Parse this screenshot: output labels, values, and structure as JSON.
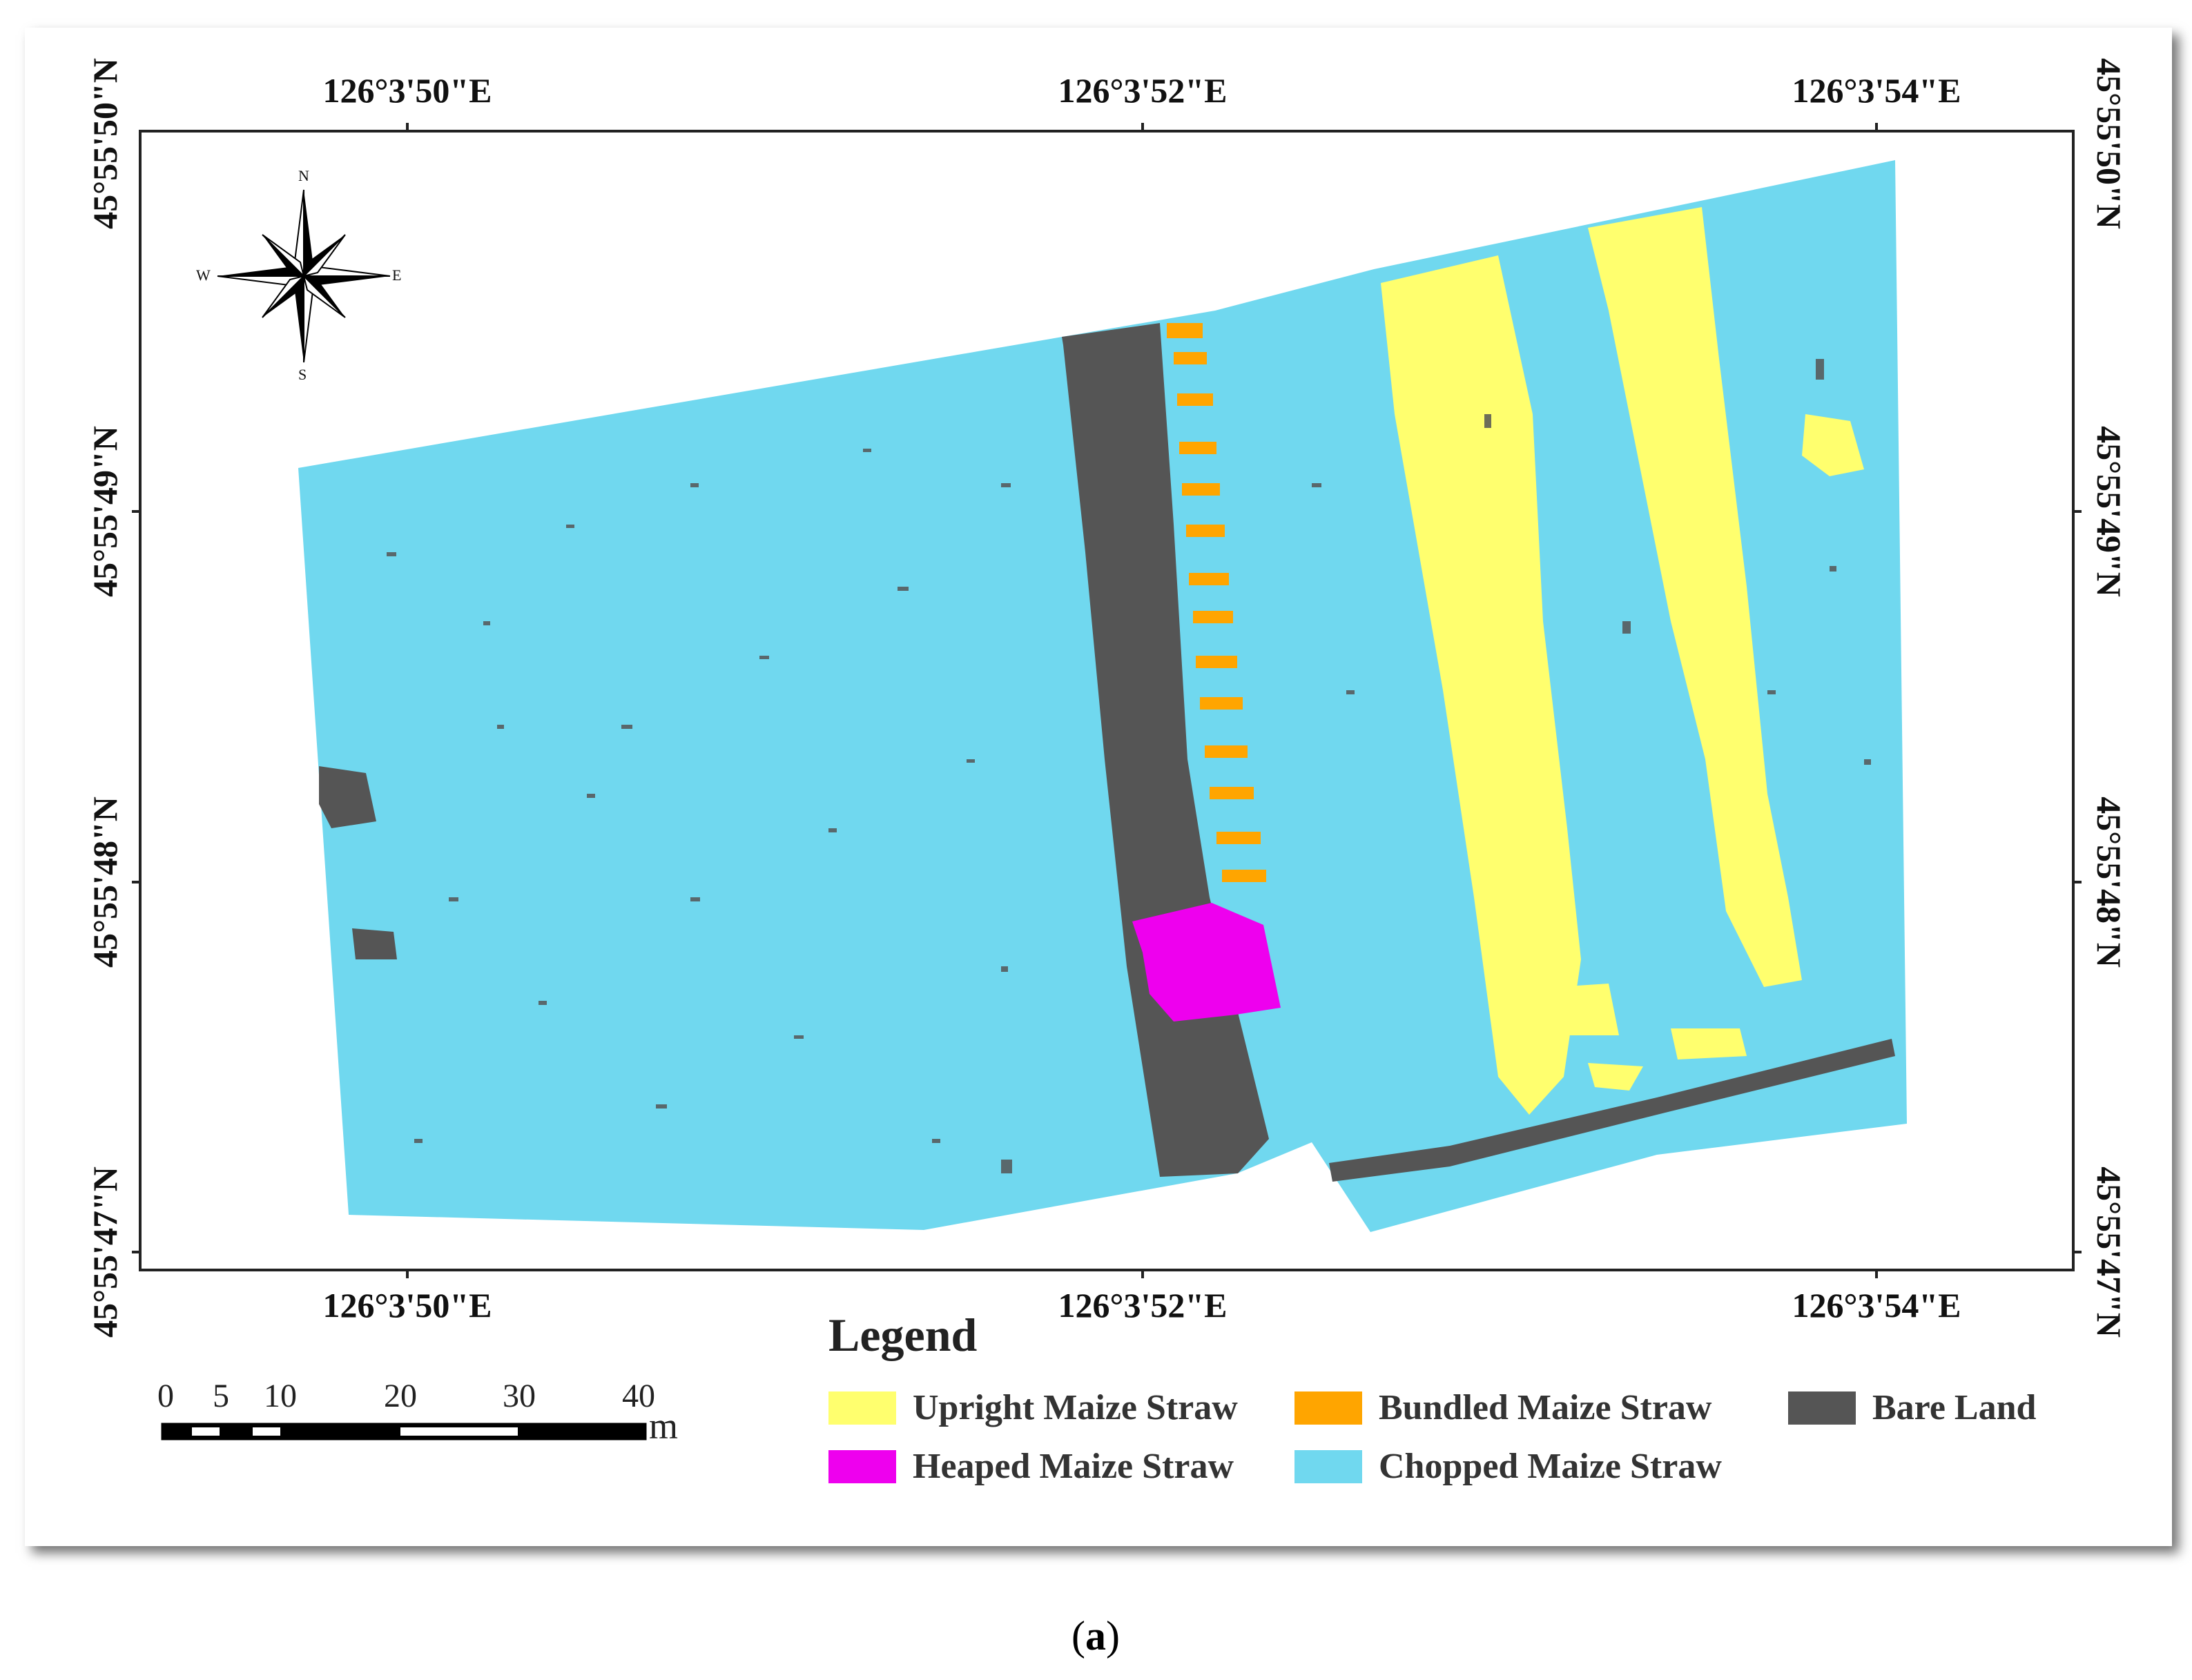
{
  "map": {
    "top_lon_labels": [
      "126°3'50\"E",
      "126°3'52\"E",
      "126°3'54\"E"
    ],
    "bottom_lon_labels": [
      "126°3'50\"E",
      "126°3'52\"E",
      "126°3'54\"E"
    ],
    "left_lat_labels": [
      "45°55'50\"N",
      "45°55'49\"N",
      "45°55'48\"N",
      "45°55'47\"N"
    ],
    "right_lat_labels": [
      "45°55'50\"N",
      "45°55'49\"N",
      "45°55'48\"N",
      "45°55'47\"N"
    ]
  },
  "compass": {
    "n": "N",
    "s": "S",
    "e": "E",
    "w": "W",
    "icon": "north-arrow-compass-rose-icon"
  },
  "legend": {
    "title": "Legend",
    "items": [
      {
        "label": "Upright Maize Straw",
        "color": "#ffff6e"
      },
      {
        "label": "Bundled Maize Straw",
        "color": "#ffa500"
      },
      {
        "label": "Bare Land",
        "color": "#555555"
      },
      {
        "label": "Heaped Maize Straw",
        "color": "#ee00ee"
      },
      {
        "label": "Chopped Maize Straw",
        "color": "#70d8ef"
      }
    ]
  },
  "scalebar": {
    "ticks": [
      "0",
      "5",
      "10",
      "20",
      "30",
      "40"
    ],
    "unit": "m"
  },
  "caption": {
    "open": "(",
    "letter": "a",
    "close": ")"
  }
}
